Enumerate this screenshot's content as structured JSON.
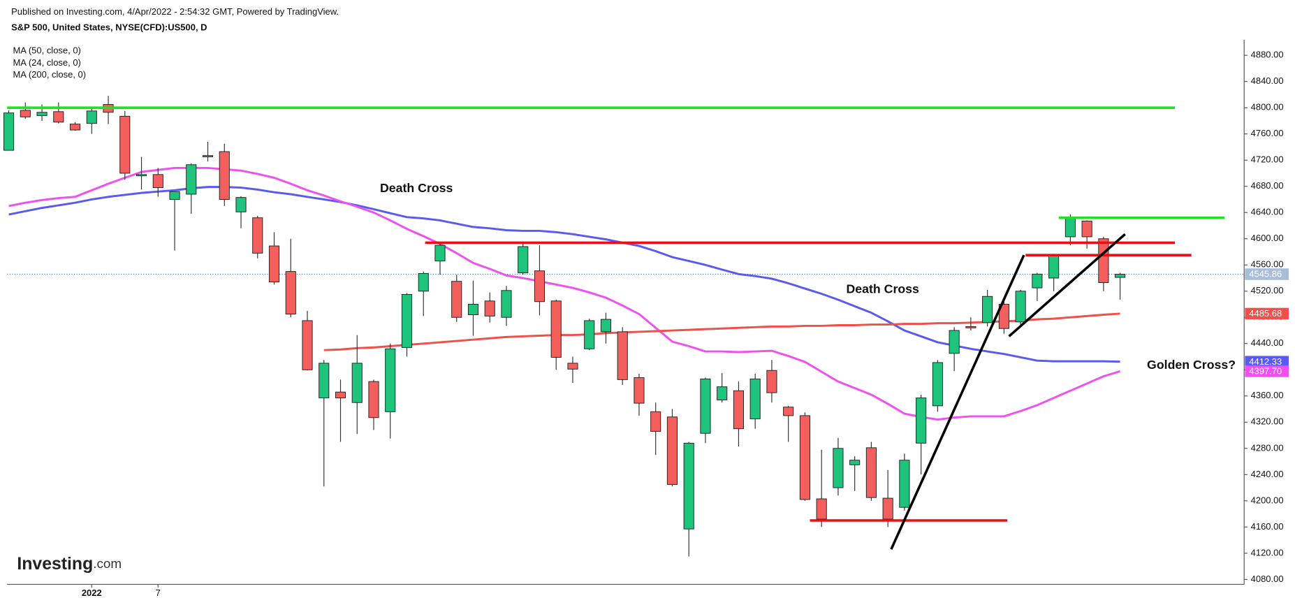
{
  "header": {
    "published": "Published on Investing.com, 4/Apr/2022 - 2:54:32 GMT, Powered by TradingView.",
    "symbol": "S&P 500, United States, NYSE(CFD):US500, D"
  },
  "logo": {
    "brand": "Investing",
    "suffix": ".com"
  },
  "chart_data": {
    "type": "candlestick",
    "categories": [
      null,
      null,
      null,
      null,
      null,
      "2022",
      null,
      null,
      null,
      "7",
      null,
      null,
      null,
      null,
      null,
      null,
      null,
      null,
      null,
      null,
      null,
      null,
      null,
      null,
      null,
      null,
      null,
      null,
      null,
      null,
      null,
      null,
      null,
      null,
      null,
      null,
      null,
      null,
      null,
      null,
      null,
      null,
      null,
      null,
      null,
      null,
      null,
      null,
      null,
      null,
      null,
      null,
      null,
      null,
      null,
      null,
      null,
      null,
      null,
      null,
      null,
      null,
      null,
      null,
      null,
      null,
      null,
      null
    ],
    "open": [
      4735,
      4796,
      4788,
      4794,
      4775,
      4776,
      4805,
      4787,
      4696,
      4698,
      4660,
      4668,
      4727,
      4733,
      4641,
      4632,
      4589,
      4550,
      4475,
      4357,
      4366,
      4350,
      4382,
      4336,
      4434,
      4520,
      4566,
      4535,
      4484,
      4505,
      4480,
      4548,
      4551,
      4505,
      4410,
      4432,
      4458,
      4458,
      4388,
      4336,
      4328,
      4157,
      4303,
      4354,
      4368,
      4325,
      4399,
      4343,
      4330,
      4203,
      4220,
      4255,
      4281,
      4204,
      4190,
      4288,
      4345,
      4425,
      4466,
      4472,
      4500,
      4473,
      4525,
      4540,
      4603,
      4627,
      4600,
      4541
    ],
    "high": [
      4796,
      4808,
      4805,
      4808,
      4778,
      4800,
      4818,
      4795,
      4725,
      4708,
      4672,
      4715,
      4748,
      4745,
      4665,
      4635,
      4610,
      4600,
      4490,
      4415,
      4385,
      4453,
      4385,
      4440,
      4517,
      4550,
      4595,
      4545,
      4536,
      4518,
      4528,
      4595,
      4590,
      4507,
      4420,
      4478,
      4487,
      4465,
      4394,
      4350,
      4340,
      4290,
      4388,
      4395,
      4382,
      4394,
      4415,
      4345,
      4335,
      4278,
      4296,
      4268,
      4290,
      4247,
      4272,
      4362,
      4415,
      4465,
      4480,
      4522,
      4504,
      4522,
      4548,
      4577,
      4637,
      4628,
      4603,
      4548
    ],
    "low": [
      4735,
      4783,
      4780,
      4776,
      4765,
      4760,
      4775,
      4690,
      4675,
      4664,
      4582,
      4638,
      4718,
      4650,
      4616,
      4570,
      4530,
      4480,
      4399,
      4222,
      4290,
      4302,
      4308,
      4295,
      4420,
      4482,
      4545,
      4473,
      4452,
      4472,
      4467,
      4545,
      4483,
      4400,
      4380,
      4430,
      4440,
      4377,
      4330,
      4270,
      4222,
      4115,
      4288,
      4350,
      4283,
      4310,
      4350,
      4290,
      4200,
      4160,
      4208,
      4215,
      4200,
      4160,
      4185,
      4240,
      4336,
      4398,
      4460,
      4466,
      4455,
      4465,
      4505,
      4520,
      4590,
      4585,
      4520,
      4507
    ],
    "close": [
      4792,
      4786,
      4793,
      4778,
      4766,
      4795,
      4793,
      4700,
      4698,
      4678,
      4672,
      4713,
      4725,
      4660,
      4663,
      4578,
      4534,
      4485,
      4400,
      4410,
      4357,
      4410,
      4327,
      4432,
      4515,
      4547,
      4590,
      4480,
      4500,
      4482,
      4521,
      4588,
      4504,
      4419,
      4401,
      4475,
      4477,
      4385,
      4349,
      4306,
      4225,
      4288,
      4386,
      4374,
      4310,
      4386,
      4365,
      4330,
      4202,
      4172,
      4280,
      4262,
      4205,
      4172,
      4262,
      4357,
      4411,
      4460,
      4464,
      4512,
      4463,
      4520,
      4546,
      4576,
      4632,
      4603,
      4533,
      4545.86
    ],
    "up_color": "#1fc47c",
    "down_color": "#f25f5c",
    "series": [
      {
        "name": "MA (50, close, 0)",
        "color": "#5a5af2",
        "values": [
          4637,
          4642,
          4647,
          4651,
          4655,
          4660,
          4664,
          4667,
          4670,
          4672,
          4674,
          4677,
          4679,
          4679,
          4678,
          4675,
          4671,
          4668,
          4664,
          4660,
          4656,
          4651,
          4645,
          4639,
          4633,
          4631,
          4628,
          4623,
          4618,
          4616,
          4613,
          4612,
          4612,
          4610,
          4607,
          4603,
          4599,
          4594,
          4589,
          4581,
          4572,
          4566,
          4560,
          4553,
          4546,
          4543,
          4539,
          4532,
          4524,
          4516,
          4507,
          4497,
          4487,
          4474,
          4460,
          4451,
          4442,
          4437,
          4432,
          4428,
          4424,
          4419,
          4414,
          4413,
          4413,
          4413,
          4413,
          4412.33
        ]
      },
      {
        "name": "MA (24, close, 0)",
        "color": "#f050f0",
        "values": [
          4650,
          4655,
          4659,
          4662,
          4664,
          4674,
          4684,
          4693,
          4702,
          4705,
          4708,
          4708,
          4708,
          4706,
          4704,
          4699,
          4693,
          4684,
          4674,
          4666,
          4657,
          4649,
          4640,
          4628,
          4615,
          4604,
          4592,
          4578,
          4563,
          4554,
          4544,
          4540,
          4535,
          4530,
          4525,
          4518,
          4510,
          4498,
          4485,
          4464,
          4443,
          4436,
          4428,
          4428,
          4427,
          4428,
          4429,
          4421,
          4412,
          4397,
          4382,
          4372,
          4362,
          4348,
          4333,
          4328,
          4324,
          4327,
          4329,
          4329,
          4329,
          4337,
          4346,
          4357,
          4368,
          4379,
          4390,
          4397.7
        ],
        "value_labels": [
          null,
          null,
          null,
          null,
          null,
          null,
          null,
          null,
          null,
          null,
          null,
          null,
          null,
          null,
          null,
          null,
          null,
          null,
          null,
          null,
          null,
          null,
          null,
          null,
          null,
          null,
          null,
          null,
          null,
          null,
          null,
          null,
          null,
          null,
          null,
          null,
          null,
          null,
          null,
          null,
          null,
          null,
          null,
          null,
          null,
          null,
          null,
          null,
          null,
          null,
          null,
          null,
          null,
          null,
          null,
          null,
          null,
          null,
          null,
          null,
          null,
          null,
          null,
          null,
          null,
          null,
          null,
          "4397.70"
        ]
      },
      {
        "name": "MA (200, close, 0)",
        "color": "#f0504a",
        "values": [
          null,
          null,
          null,
          null,
          null,
          null,
          null,
          null,
          null,
          null,
          null,
          null,
          null,
          null,
          null,
          null,
          null,
          null,
          null,
          4430,
          4431,
          4433,
          4434,
          4436,
          4438,
          4440,
          4442,
          4444,
          4446,
          4448,
          4450,
          4451,
          4452,
          4453,
          4453,
          4454,
          4456,
          4457,
          4458,
          4459,
          4460,
          4461,
          4462,
          4463,
          4464,
          4465,
          4466,
          4466,
          4467,
          4467,
          4468,
          4468,
          4469,
          4469,
          4470,
          4470,
          4471,
          4471,
          4472,
          4473,
          4474,
          4475,
          4477,
          4478,
          4480,
          4482,
          4484,
          4485.68
        ]
      }
    ],
    "trendlines": [
      {
        "color": "#22e022",
        "from": [
          -0.1,
          4800
        ],
        "to": [
          70.3,
          4800
        ]
      },
      {
        "color": "#22e022",
        "from": [
          63.3,
          4632
        ],
        "to": [
          73.3,
          4632
        ]
      },
      {
        "color": "#e81010",
        "from": [
          25.1,
          4594
        ],
        "to": [
          70.3,
          4594
        ]
      },
      {
        "color": "#e81010",
        "from": [
          61.3,
          4575
        ],
        "to": [
          71.3,
          4575
        ]
      },
      {
        "color": "#e81010",
        "from": [
          48.3,
          4170
        ],
        "to": [
          60.2,
          4170
        ]
      },
      {
        "color": "#000000",
        "from": [
          53.2,
          4126
        ],
        "to": [
          61.2,
          4575
        ]
      },
      {
        "color": "#000000",
        "from": [
          60.3,
          4451
        ],
        "to": [
          67.3,
          4607
        ]
      }
    ],
    "annotations": [
      "Death Cross",
      "Death Cross",
      "Golden Cross?"
    ],
    "ylim": [
      4080,
      4880
    ],
    "yticks": [
      {
        "value": 4080,
        "label": "4080.00"
      },
      {
        "value": 4120,
        "label": "4120.00"
      },
      {
        "value": 4160,
        "label": "4160.00"
      },
      {
        "value": 4200,
        "label": "4200.00"
      },
      {
        "value": 4240,
        "label": "4240.00"
      },
      {
        "value": 4280,
        "label": "4280.00"
      },
      {
        "value": 4320,
        "label": "4320.00"
      },
      {
        "value": 4360,
        "label": "4360.00"
      },
      {
        "value": 4400,
        "label": "4400.00"
      },
      {
        "value": 4440,
        "label": "4440.00"
      },
      {
        "value": 4480,
        "label": "4480.00"
      },
      {
        "value": 4520,
        "label": "4520.00"
      },
      {
        "value": 4560,
        "label": "4560.00"
      },
      {
        "value": 4600,
        "label": "4600.00"
      },
      {
        "value": 4640,
        "label": "4640.00"
      },
      {
        "value": 4680,
        "label": "4680.00"
      },
      {
        "value": 4720,
        "label": "4720.00"
      },
      {
        "value": 4760,
        "label": "4760.00"
      },
      {
        "value": 4800,
        "label": "4800.00"
      },
      {
        "value": 4840,
        "label": "4840.00"
      },
      {
        "value": 4880,
        "label": "4880.00"
      }
    ],
    "grid": false
  }
}
